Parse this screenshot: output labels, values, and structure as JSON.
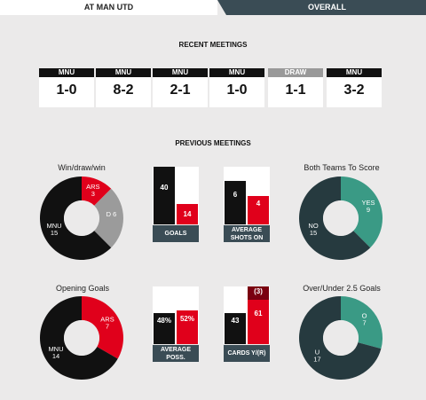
{
  "tabs": {
    "left": "AT MAN UTD",
    "right": "OVERALL"
  },
  "recent": {
    "title": "RECENT MEETINGS",
    "items": [
      {
        "label": "MNU",
        "score": "1-0",
        "draw": false
      },
      {
        "label": "MNU",
        "score": "8-2",
        "draw": false
      },
      {
        "label": "MNU",
        "score": "2-1",
        "draw": false
      },
      {
        "label": "MNU",
        "score": "1-0",
        "draw": false
      },
      {
        "label": "DRAW",
        "score": "1-1",
        "draw": true
      },
      {
        "label": "MNU",
        "score": "3-2",
        "draw": false
      }
    ]
  },
  "previous": {
    "title": "PREVIOUS MEETINGS"
  },
  "wdw": {
    "title": "Win/draw/win",
    "segments": [
      {
        "name": "ARS",
        "value": 3,
        "color": "#e0001b"
      },
      {
        "name": "D",
        "value": 6,
        "color": "#9b9b9b"
      },
      {
        "name": "MNU",
        "value": 15,
        "color": "#111111"
      }
    ]
  },
  "btts": {
    "title": "Both Teams To Score",
    "segments": [
      {
        "name": "YES",
        "value": 9,
        "color": "#3a9a85"
      },
      {
        "name": "NO",
        "value": 15,
        "color": "#263a3f"
      }
    ]
  },
  "opening": {
    "title": "Opening Goals",
    "segments": [
      {
        "name": "ARS",
        "value": 7,
        "color": "#e0001b"
      },
      {
        "name": "MNU",
        "value": 14,
        "color": "#111111"
      }
    ]
  },
  "ou": {
    "title": "Over/Under 2.5 Goals",
    "segments": [
      {
        "name": "O",
        "value": 7,
        "color": "#3a9a85"
      },
      {
        "name": "U",
        "value": 17,
        "color": "#263a3f"
      }
    ]
  },
  "goals": {
    "caption": "GOALS",
    "bars": [
      {
        "label": "40",
        "value": 40,
        "color": "#111111"
      },
      {
        "label": "14",
        "value": 14,
        "color": "#e0001b"
      }
    ],
    "max": 40
  },
  "shots": {
    "caption": "AVERAGE SHOTS ON",
    "bars": [
      {
        "label": "6",
        "value": 6,
        "color": "#111111"
      },
      {
        "label": "4",
        "value": 4,
        "color": "#e0001b"
      }
    ],
    "max": 8
  },
  "poss": {
    "caption": "AVERAGE POSS.",
    "bars": [
      {
        "label": "48%",
        "value": 48,
        "color": "#111111"
      },
      {
        "label": "52%",
        "value": 52,
        "color": "#e0001b"
      }
    ],
    "max": 90
  },
  "cards": {
    "caption": "CARDS Y/(R)",
    "bars": [
      {
        "label": "43",
        "value": 43,
        "color": "#111111"
      },
      {
        "label": "61",
        "value": 61,
        "color": "#e0001b",
        "extra": {
          "label": "(3)",
          "value": 3,
          "color": "#7a0010"
        }
      }
    ],
    "max": 80
  }
}
